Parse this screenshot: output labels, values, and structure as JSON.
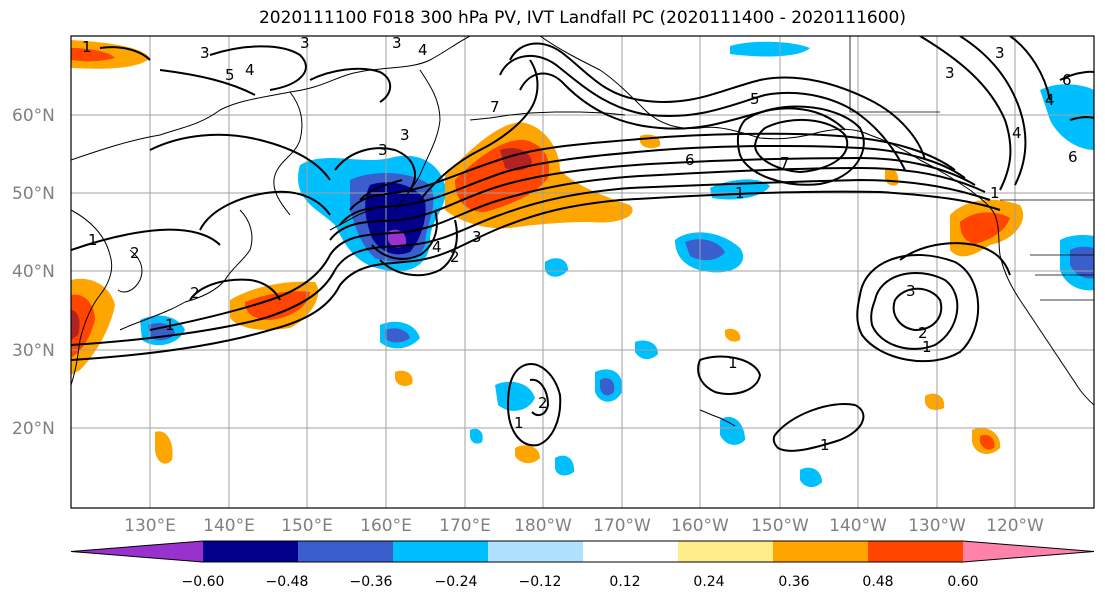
{
  "title": "2020111100 F018 300 hPa PV, IVT Landfall PC (2020111400 - 2020111600)",
  "lat_labels": [
    "60°N",
    "50°N",
    "40°N",
    "30°N",
    "20°N"
  ],
  "lon_labels": [
    "130°E",
    "140°E",
    "150°E",
    "160°E",
    "170°E",
    "180°W",
    "170°W",
    "160°W",
    "150°W",
    "140°W",
    "130°W",
    "120°W"
  ],
  "colorbar": {
    "ticks": [
      "−0.60",
      "−0.48",
      "−0.36",
      "−0.24",
      "−0.12",
      "0.12",
      "0.24",
      "0.36",
      "0.48",
      "0.60"
    ],
    "colors": [
      "#9932cc",
      "#00008b",
      "#3a5fcd",
      "#00bfff",
      "#b0e2ff",
      "#ffffff",
      "#ffec8b",
      "#ffa500",
      "#ff4500",
      "#b22222",
      "#ff82ab"
    ]
  },
  "contour_labels": [
    "1",
    "2",
    "3",
    "4",
    "5",
    "6",
    "7"
  ]
}
